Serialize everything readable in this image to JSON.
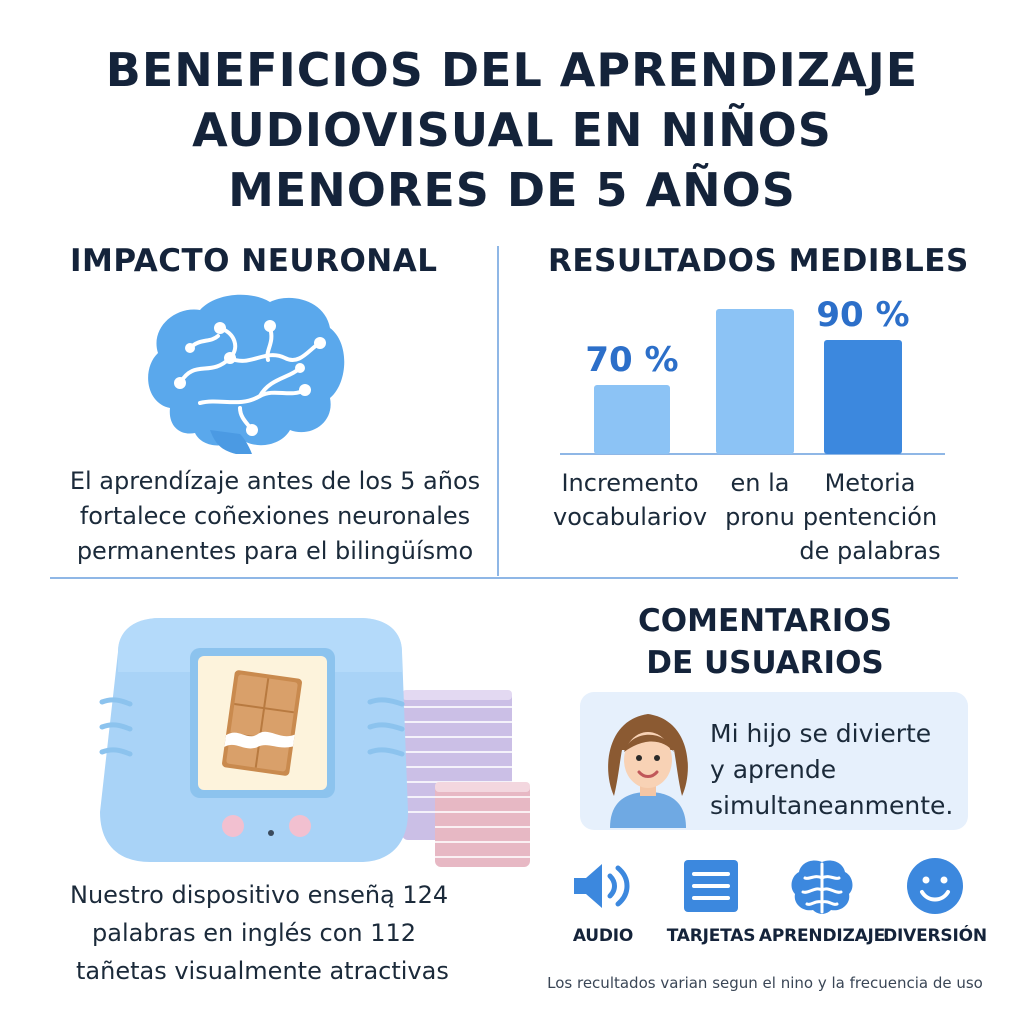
{
  "title": {
    "line1": "BENEFICIOS DEL APRENDIZAJE",
    "line2": "AUDIOVISUAL EN NIÑOS",
    "line3": "MENORES DE 5 AÑOS"
  },
  "impact": {
    "heading": "IMPACTO NEURONAL",
    "icon": "brain-icon",
    "text_line1": "El aprendízaje antes de los 5 años",
    "text_line2": "fortalece coñexiones neuronales",
    "text_line3": "permanentes para el bilingüísmo"
  },
  "results": {
    "heading": "RESULTADOS MEDIBLES"
  },
  "chart_data": {
    "type": "bar",
    "categories": [
      "Incremento vocabulariov",
      "en la pronu",
      "Metoria pentención de palabras"
    ],
    "category_lines": [
      [
        "Incremento",
        "vocabulariov"
      ],
      [
        "en la",
        "pronu"
      ],
      [
        "Metoria",
        "pentención",
        "de palabras"
      ]
    ],
    "values": [
      70,
      null,
      90
    ],
    "value_labels": [
      "70 %",
      "",
      "90 %"
    ],
    "bar_colors": [
      "#8cc3f5",
      "#8cc3f5",
      "#3c88de"
    ],
    "label_color": "#2c6fc9",
    "title": "",
    "xlabel": "",
    "ylabel": "",
    "grid": false
  },
  "device": {
    "text_line1": "Nuestro dispositivo enseñą 124",
    "text_line2": "palabras en inglés con 112",
    "text_line3": "tañetas visualmente atractivas"
  },
  "comments": {
    "heading_line1": "COMENTARIOS",
    "heading_line2": "DE USUARIOS",
    "quote_line1": "Mi hijo se divierte",
    "quote_line2": "y aprende",
    "quote_line3": "simultaneanmente."
  },
  "features": [
    {
      "label": "AUDIO",
      "icon": "speaker-icon"
    },
    {
      "label": "TARJETAS",
      "icon": "cards-list-icon"
    },
    {
      "label": "APRENDIZAJE",
      "icon": "brain-icon"
    },
    {
      "label": "DIVERSIÓN",
      "icon": "smiley-icon"
    }
  ],
  "footnote": "Los recultados varian segun el nino y la frecuencia de uso",
  "colors": {
    "accent_light": "#8cc3f5",
    "accent_dark": "#3c88de",
    "heading": "#14233a",
    "divider": "#8fb7e6"
  }
}
